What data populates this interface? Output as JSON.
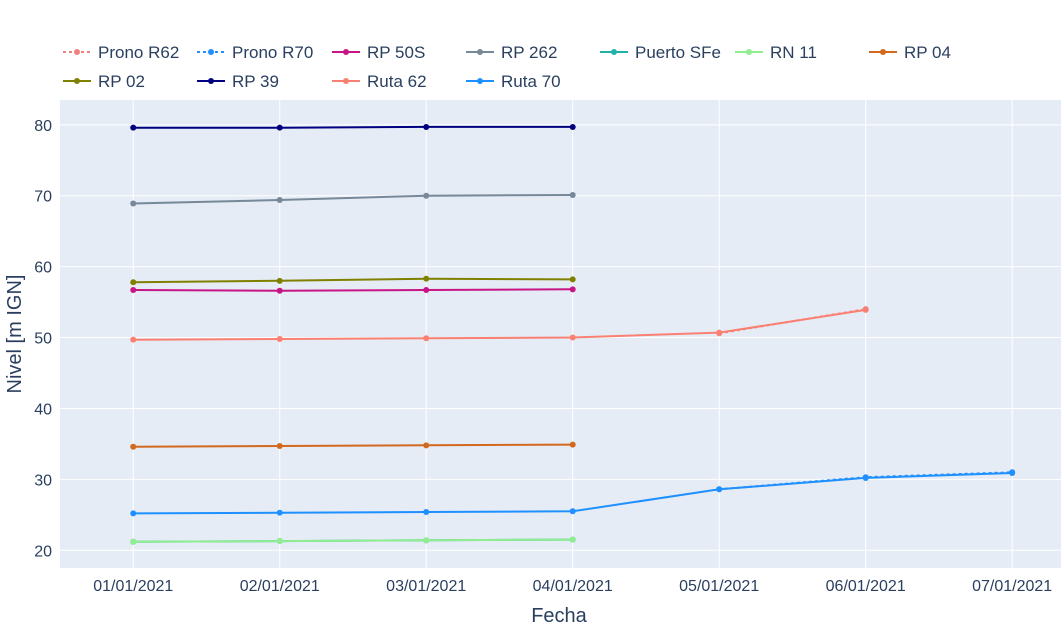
{
  "chart_data": {
    "type": "line",
    "xlabel": "Fecha",
    "ylabel": "Nivel [m IGN]",
    "x_ticks": [
      "01/01/2021",
      "02/01/2021",
      "03/01/2021",
      "04/01/2021",
      "05/01/2021",
      "06/01/2021",
      "07/01/2021"
    ],
    "xlim": [
      "2020-12-31T12:00",
      "2021-01-07T08:00"
    ],
    "y_ticks": [
      20,
      30,
      40,
      50,
      60,
      70,
      80
    ],
    "ylim": [
      17.5,
      83.5
    ],
    "grid": true,
    "legend_position": "top",
    "plot_bg": "#e5ecf6",
    "series": [
      {
        "name": "Prono R62",
        "color": "#f08080",
        "dash": "dot",
        "x": [
          "2021-01-05",
          "2021-01-06"
        ],
        "y": [
          50.6,
          54.0
        ]
      },
      {
        "name": "Prono R70",
        "color": "#1e90ff",
        "dash": "dot",
        "x": [
          "2021-01-05",
          "2021-01-06",
          "2021-01-07"
        ],
        "y": [
          28.6,
          30.3,
          31.0
        ]
      },
      {
        "name": "RP 50S",
        "color": "#c71585",
        "dash": "solid",
        "x": [
          "2021-01-01",
          "2021-01-02",
          "2021-01-03",
          "2021-01-04"
        ],
        "y": [
          56.7,
          56.6,
          56.7,
          56.8
        ]
      },
      {
        "name": "RP 262",
        "color": "#778899",
        "dash": "solid",
        "x": [
          "2021-01-01",
          "2021-01-02",
          "2021-01-03",
          "2021-01-04"
        ],
        "y": [
          68.9,
          69.4,
          70.0,
          70.1
        ]
      },
      {
        "name": "Puerto SFe",
        "color": "#20b2aa",
        "dash": "solid",
        "x": [
          "2021-01-01",
          "2021-01-02",
          "2021-01-03",
          "2021-01-04"
        ],
        "y": [
          21.2,
          21.3,
          21.4,
          21.5
        ]
      },
      {
        "name": "RN 11",
        "color": "#90ee90",
        "dash": "solid",
        "x": [
          "2021-01-01",
          "2021-01-02",
          "2021-01-03",
          "2021-01-04"
        ],
        "y": [
          21.2,
          21.3,
          21.4,
          21.5
        ]
      },
      {
        "name": "RP 04",
        "color": "#d2691e",
        "dash": "solid",
        "x": [
          "2021-01-01",
          "2021-01-02",
          "2021-01-03",
          "2021-01-04"
        ],
        "y": [
          34.6,
          34.7,
          34.8,
          34.9
        ]
      },
      {
        "name": "RP 02",
        "color": "#808000",
        "dash": "solid",
        "x": [
          "2021-01-01",
          "2021-01-02",
          "2021-01-03",
          "2021-01-04"
        ],
        "y": [
          57.8,
          58.0,
          58.3,
          58.2
        ]
      },
      {
        "name": "RP 39",
        "color": "#000080",
        "dash": "solid",
        "x": [
          "2021-01-01",
          "2021-01-02",
          "2021-01-03",
          "2021-01-04"
        ],
        "y": [
          79.6,
          79.6,
          79.7,
          79.7
        ]
      },
      {
        "name": "Ruta 62",
        "color": "#fa8072",
        "dash": "solid",
        "x": [
          "2021-01-01",
          "2021-01-02",
          "2021-01-03",
          "2021-01-04",
          "2021-01-05",
          "2021-01-06"
        ],
        "y": [
          49.7,
          49.8,
          49.9,
          50.0,
          50.7,
          53.9
        ]
      },
      {
        "name": "Ruta 70",
        "color": "#1e90ff",
        "dash": "solid",
        "x": [
          "2021-01-01",
          "2021-01-02",
          "2021-01-03",
          "2021-01-04",
          "2021-01-05",
          "2021-01-06",
          "2021-01-07"
        ],
        "y": [
          25.2,
          25.3,
          25.4,
          25.5,
          28.6,
          30.2,
          30.9
        ]
      }
    ]
  }
}
